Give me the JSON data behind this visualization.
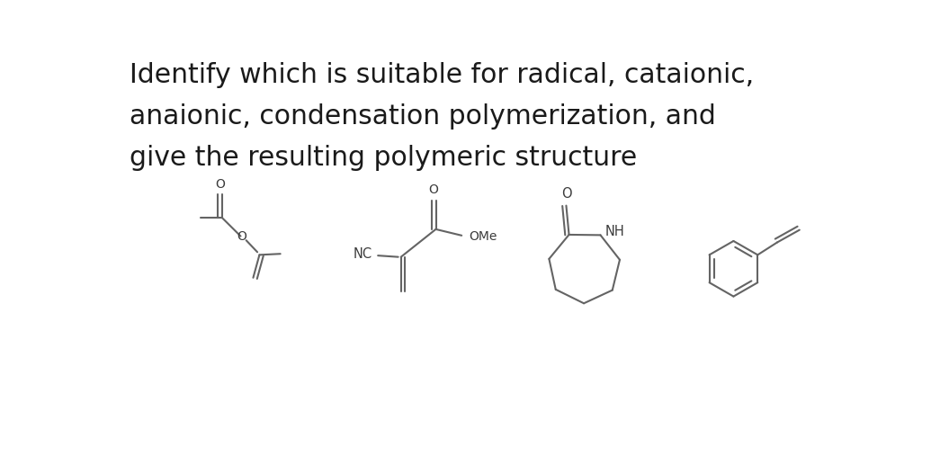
{
  "title_line1": "Identify which is suitable for radical, cataionic,",
  "title_line2": "anaionic, condensation polymerization, and",
  "title_line3": "give the resulting polymeric structure",
  "title_fontsize": 21.5,
  "title_color": "#1a1a1a",
  "bg_color": "#ffffff",
  "line_color": "#646464",
  "text_color": "#3c3c3c",
  "lw": 1.5
}
